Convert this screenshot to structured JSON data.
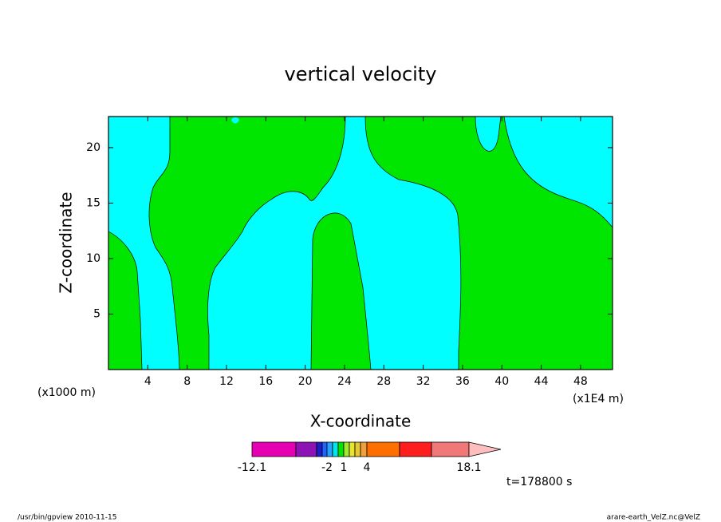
{
  "chart_data": {
    "type": "contour",
    "title": "vertical velocity",
    "x_label": "X-coordinate",
    "y_label": "Z-coordinate",
    "x_unit_left": "(x1000 m)",
    "x_unit_right": "(x1E4 m)",
    "xlim": [
      0,
      51.25
    ],
    "xticks": [
      4,
      8,
      12,
      16,
      20,
      24,
      28,
      32,
      36,
      40,
      44,
      48
    ],
    "ylim": [
      0,
      22.8
    ],
    "yticks": [
      5,
      10,
      15,
      20
    ],
    "fill_colors": [
      "#00ffff",
      "#00e600"
    ],
    "colorbar": {
      "colors": [
        "#e600b4",
        "#8c14b4",
        "#1e1ec8",
        "#1e64ff",
        "#28a0ff",
        "#00e6e6",
        "#00e600",
        "#a0e632",
        "#e6e632",
        "#e6c832",
        "#f0a03c",
        "#ff6e00",
        "#ff1e1e",
        "#f07878",
        "#ffbebe"
      ],
      "labels": [
        "-12.1",
        "-2",
        "1",
        "4",
        "18.1"
      ]
    },
    "time_label": "t=178800 s",
    "footer_left": "/usr/bin/gpview   2010-11-15",
    "footer_right": "arare-earth_VelZ.nc@VelZ"
  }
}
